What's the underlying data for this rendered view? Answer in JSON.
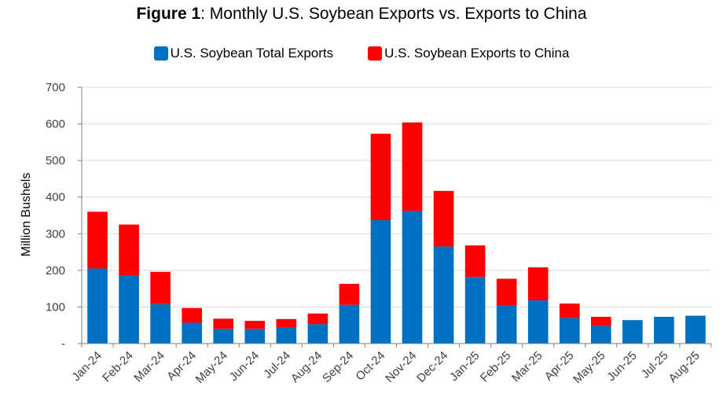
{
  "title": {
    "bold": "Figure 1",
    "rest": ":  Monthly U.S. Soybean Exports vs. Exports to China"
  },
  "colors": {
    "total": "#0070C0",
    "china": "#FF0000",
    "grid": "#D9D9D9",
    "axis": "#7F7F7F",
    "text": "#404040"
  },
  "chart_data": {
    "type": "bar",
    "stacked": true,
    "title": "Figure 1:  Monthly U.S. Soybean Exports vs. Exports to China",
    "xlabel": "",
    "ylabel": "Million Bushels",
    "ylim": [
      0,
      700
    ],
    "yticks": [
      0,
      100,
      200,
      300,
      400,
      500,
      600,
      700
    ],
    "ytick_labels": [
      "-",
      "100",
      "200",
      "300",
      "400",
      "500",
      "600",
      "700"
    ],
    "grid": true,
    "legend_position": "top-center",
    "categories": [
      "Jan-24",
      "Feb-24",
      "Mar-24",
      "Apr-24",
      "May-24",
      "Jun-24",
      "Jul-24",
      "Aug-24",
      "Sep-24",
      "Oct-24",
      "Nov-24",
      "Dec-24",
      "Jan-25",
      "Feb-25",
      "Mar-25",
      "Apr-25",
      "May-25",
      "Jun-25",
      "Jul-25",
      "Aug-25"
    ],
    "series": [
      {
        "name": "U.S. Soybean Total Exports",
        "color": "#0070C0",
        "values": [
          205,
          185,
          108,
          57,
          40,
          40,
          45,
          53,
          106,
          337,
          362,
          265,
          182,
          104,
          118,
          70,
          48,
          64,
          73,
          76
        ]
      },
      {
        "name": "U.S. Soybean Exports to China",
        "color": "#FF0000",
        "values": [
          155,
          140,
          88,
          40,
          28,
          22,
          22,
          29,
          57,
          236,
          242,
          152,
          86,
          73,
          90,
          39,
          25,
          0,
          0,
          0
        ]
      }
    ]
  }
}
